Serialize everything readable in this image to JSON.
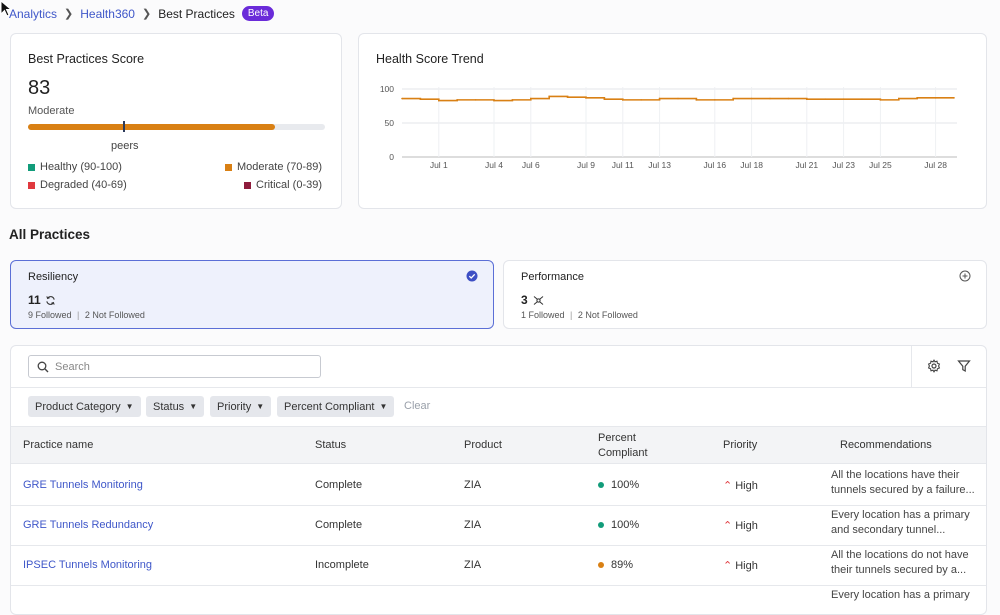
{
  "breadcrumb": {
    "items": [
      "Analytics",
      "Health360"
    ],
    "current": "Best Practices",
    "badge": "Beta"
  },
  "score_card": {
    "title": "Best Practices Score",
    "score": "83",
    "rating": "Moderate",
    "score_fraction": 0.83,
    "peers_label": "peers",
    "legend": [
      {
        "label": "Healthy (90-100)",
        "color": "#129c7a"
      },
      {
        "label": "Moderate (70-89)",
        "color": "#d98014"
      },
      {
        "label": "Degraded (40-69)",
        "color": "#e0393e"
      },
      {
        "label": "Critical (0-39)",
        "color": "#8e1b3c"
      }
    ]
  },
  "trend_card": {
    "title": "Health Score Trend"
  },
  "chart_data": {
    "type": "line",
    "title": "Health Score Trend",
    "xlabel": "",
    "ylabel": "",
    "ylim": [
      0,
      100
    ],
    "yticks": [
      "100",
      "50",
      "0"
    ],
    "xtick_labels": [
      "Jul 1",
      "Jul 4",
      "Jul 6",
      "Jul 9",
      "Jul 11",
      "Jul 13",
      "Jul 16",
      "Jul 18",
      "Jul 21",
      "Jul 23",
      "Jul 25",
      "Jul 28"
    ],
    "x": [
      "Jun 29",
      "Jun 30",
      "Jul 1",
      "Jul 2",
      "Jul 3",
      "Jul 4",
      "Jul 5",
      "Jul 6",
      "Jul 7",
      "Jul 8",
      "Jul 9",
      "Jul 10",
      "Jul 11",
      "Jul 12",
      "Jul 13",
      "Jul 14",
      "Jul 15",
      "Jul 16",
      "Jul 17",
      "Jul 18",
      "Jul 19",
      "Jul 20",
      "Jul 21",
      "Jul 22",
      "Jul 23",
      "Jul 24",
      "Jul 25",
      "Jul 26",
      "Jul 27",
      "Jul 28",
      "Jul 29"
    ],
    "values": [
      86,
      85,
      83,
      84,
      84,
      83,
      84,
      86,
      89,
      88,
      87,
      85,
      84,
      84,
      86,
      86,
      84,
      84,
      86,
      86,
      86,
      86,
      85,
      85,
      85,
      85,
      84,
      86,
      87,
      87,
      87
    ],
    "color": "#d98014",
    "grid": true
  },
  "section_title": "All Practices",
  "practice_cards": [
    {
      "name": "Resiliency",
      "count": "11",
      "followed": "9 Followed",
      "not_followed": "2 Not Followed"
    },
    {
      "name": "Performance",
      "count": "3",
      "followed": "1 Followed",
      "not_followed": "2 Not Followed"
    }
  ],
  "table": {
    "search_placeholder": "Search",
    "filters": [
      "Product Category",
      "Status",
      "Priority",
      "Percent Compliant"
    ],
    "clear_label": "Clear",
    "headers": [
      "Practice name",
      "Status",
      "Product",
      "Percent\nCompliant",
      "Priority",
      "Recommendations"
    ],
    "rows": [
      {
        "name": "GRE Tunnels Monitoring",
        "status": "Complete",
        "product": "ZIA",
        "percent": "100%",
        "dot_color": "#129c7a",
        "priority": "High",
        "rec1": "All the locations have their",
        "rec2": "tunnels secured by a failure..."
      },
      {
        "name": "GRE Tunnels Redundancy",
        "status": "Complete",
        "product": "ZIA",
        "percent": "100%",
        "dot_color": "#129c7a",
        "priority": "High",
        "rec1": "Every location has a primary",
        "rec2": "and secondary tunnel..."
      },
      {
        "name": "IPSEC Tunnels Monitoring",
        "status": "Incomplete",
        "product": "ZIA",
        "percent": "89%",
        "dot_color": "#d98014",
        "priority": "High",
        "rec1": "All the locations do not have",
        "rec2": "their tunnels secured by a..."
      },
      {
        "name": "",
        "status": "",
        "product": "",
        "percent": "",
        "dot_color": "",
        "priority": "",
        "rec1": "Every location has a primary",
        "rec2": ""
      }
    ]
  }
}
